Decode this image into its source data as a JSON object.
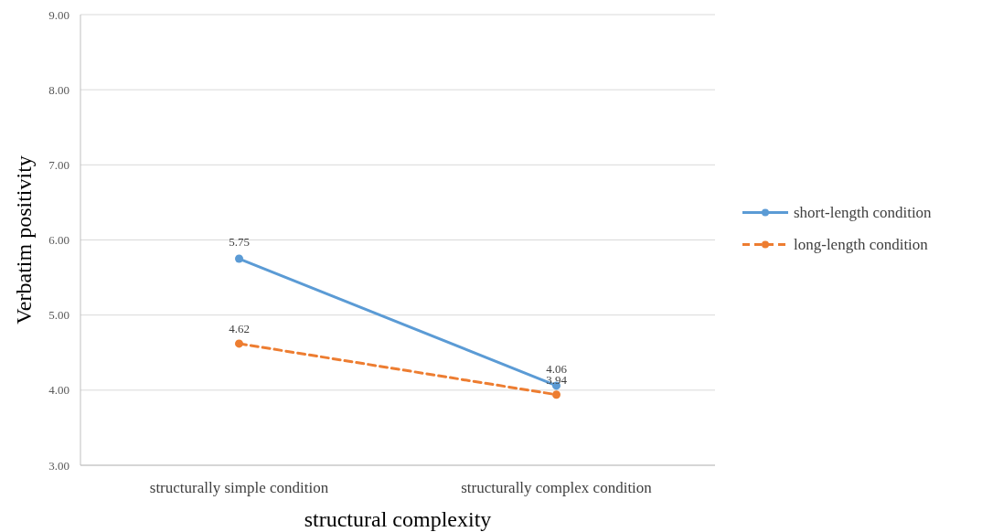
{
  "chart_data": {
    "type": "line",
    "xlabel": "structural complexity",
    "ylabel": "Verbatim positivity",
    "categories": [
      "structurally simple condition",
      "structurally complex condition"
    ],
    "series": [
      {
        "name": "short-length condition",
        "color": "#5b9bd5",
        "values": [
          5.75,
          4.06
        ],
        "line_style": "solid"
      },
      {
        "name": "long-length condition",
        "color": "#ed7d31",
        "values": [
          4.62,
          3.94
        ],
        "line_style": "dashed"
      }
    ],
    "ylim": [
      3,
      9
    ],
    "yticks": [
      {
        "value": 3,
        "label": "3.00"
      },
      {
        "value": 4,
        "label": "4.00"
      },
      {
        "value": 5,
        "label": "5.00"
      },
      {
        "value": 6,
        "label": "6.00"
      },
      {
        "value": 7,
        "label": "7.00"
      },
      {
        "value": 8,
        "label": "8.00"
      },
      {
        "value": 9,
        "label": "9.00"
      }
    ],
    "grid": "y",
    "legend": "right",
    "marker": "circle",
    "data_labels": true
  }
}
